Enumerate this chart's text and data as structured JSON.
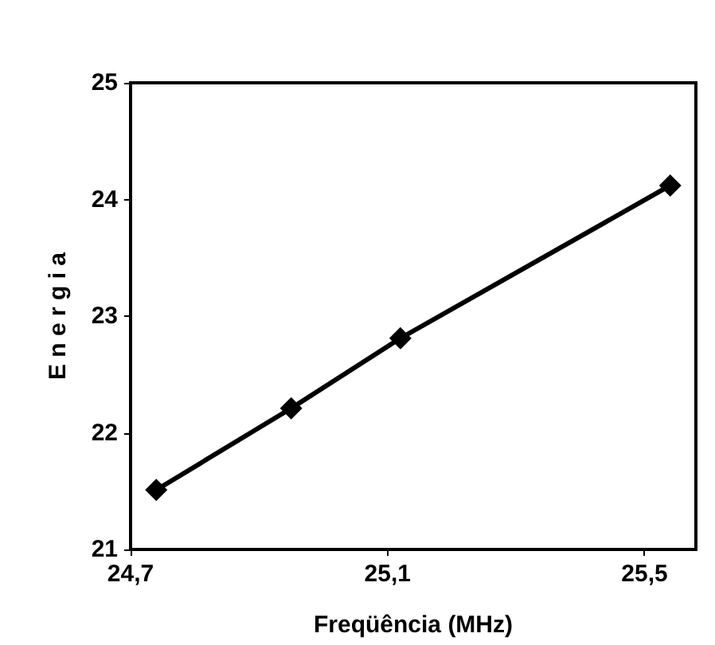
{
  "chart_data": {
    "type": "line",
    "xlabel": "Freqüência (MHz)",
    "ylabel": "E n e r g i a",
    "x": [
      24.74,
      24.95,
      25.12,
      25.54
    ],
    "series": [
      {
        "color": "#000000",
        "values": [
          21.51,
          22.21,
          22.81,
          24.12
        ]
      }
    ],
    "xlim": [
      24.7,
      25.58
    ],
    "xticks": [
      {
        "value": 24.7,
        "label": "24,7"
      },
      {
        "value": 25.1,
        "label": "25,1"
      },
      {
        "value": 25.5,
        "label": "25,5"
      }
    ],
    "ylim": [
      21,
      25
    ],
    "yticks": [
      21,
      22,
      23,
      24,
      25
    ],
    "grid": false,
    "marker": "diamond",
    "line_style": "solid"
  }
}
